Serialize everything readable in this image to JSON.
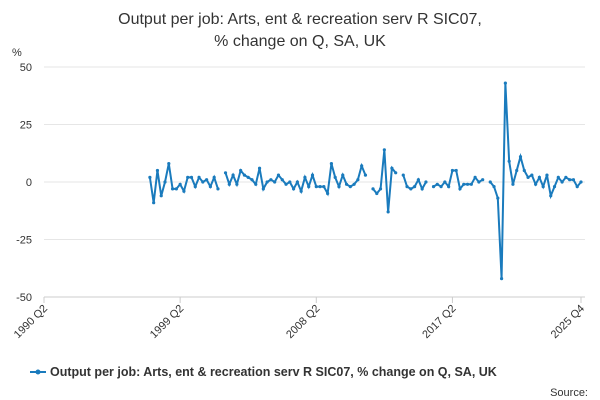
{
  "chart_data": {
    "type": "line",
    "title": "Output per job: Arts, ent & recreation serv R SIC07, % change on Q, SA, UK",
    "y_label": "%",
    "source": "Source:",
    "categories": [
      "1990 Q2",
      null,
      null,
      null,
      null,
      null,
      null,
      null,
      null,
      null,
      null,
      null,
      null,
      null,
      null,
      null,
      null,
      null,
      null,
      null,
      null,
      null,
      null,
      null,
      null,
      null,
      null,
      null,
      null,
      null,
      null,
      null,
      null,
      null,
      null,
      null,
      "1999 Q2",
      null,
      null,
      null,
      null,
      null,
      null,
      null,
      null,
      null,
      null,
      null,
      null,
      null,
      null,
      null,
      null,
      null,
      null,
      null,
      null,
      null,
      null,
      null,
      null,
      null,
      null,
      null,
      null,
      null,
      null,
      null,
      null,
      null,
      null,
      null,
      "2008 Q2",
      null,
      null,
      null,
      null,
      null,
      null,
      null,
      null,
      null,
      null,
      null,
      null,
      null,
      null,
      null,
      null,
      null,
      null,
      null,
      null,
      null,
      null,
      null,
      null,
      null,
      null,
      null,
      null,
      null,
      null,
      null,
      null,
      null,
      null,
      null,
      "2017 Q2",
      null,
      null,
      null,
      null,
      null,
      null,
      null,
      null,
      null,
      null,
      null,
      null,
      null,
      null,
      null,
      null,
      null,
      null,
      null,
      null,
      null,
      null,
      null,
      null,
      null,
      null,
      null,
      null,
      null,
      null,
      null,
      null,
      null,
      "2025 Q4"
    ],
    "series": [
      {
        "name": "Output per job: Arts, ent & recreation serv R SIC07, % change on Q, SA, UK",
        "color": "#1a7bbd",
        "values": [
          null,
          null,
          null,
          null,
          null,
          null,
          null,
          null,
          null,
          null,
          null,
          null,
          null,
          null,
          null,
          null,
          null,
          null,
          null,
          null,
          null,
          null,
          null,
          null,
          null,
          null,
          null,
          null,
          2,
          -9,
          5,
          -6,
          0,
          8,
          -3,
          -3,
          -1,
          -4,
          2,
          2,
          -2,
          2,
          0,
          1,
          -2,
          2,
          -3,
          null,
          4,
          -1,
          3,
          -1,
          5,
          3,
          2,
          1,
          -1,
          6,
          -3,
          0,
          1,
          0,
          3,
          1,
          -1,
          0,
          -3,
          0,
          -4,
          2,
          -2,
          3,
          -2,
          -2,
          -2,
          -5,
          8,
          2,
          -2,
          3,
          -1,
          -2,
          -1,
          1,
          7,
          3,
          null,
          -3,
          -5,
          -3,
          14,
          -13,
          6,
          4,
          null,
          3,
          -2,
          -3,
          -2,
          1,
          -3,
          0,
          null,
          -2,
          -1,
          -2,
          0,
          -2,
          5,
          5,
          -3,
          -1,
          -1,
          -1,
          2,
          0,
          1,
          null,
          0,
          -2,
          -7,
          -42,
          43,
          9,
          -1,
          5,
          11,
          5,
          2,
          3,
          -1,
          2,
          -2,
          3,
          -6,
          -2,
          2,
          0,
          2,
          1,
          1,
          -2,
          0
        ]
      }
    ],
    "ylim": [
      -50,
      50
    ],
    "yticks": [
      -50,
      -25,
      0,
      25,
      50
    ],
    "grid": true
  }
}
